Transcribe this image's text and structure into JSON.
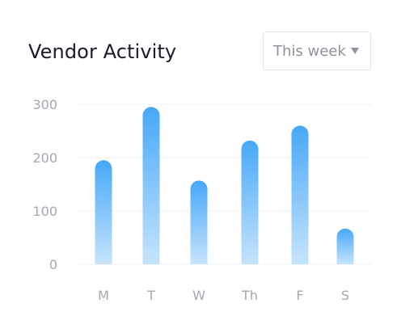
{
  "header": {
    "title": "Vendor Activity",
    "period_selector": {
      "selected": "This week",
      "icon": "chevron-down-icon"
    }
  },
  "colors": {
    "bar_top": "#46a8f8",
    "bar_bottom": "#c6e4fc",
    "grid": "#eef0f3",
    "tick_text": "#a4a8ae",
    "title_text": "#1b1b2a"
  },
  "chart_data": {
    "type": "bar",
    "title": "",
    "xlabel": "",
    "ylabel": "",
    "categories": [
      "M",
      "T",
      "W",
      "Th",
      "F",
      "S"
    ],
    "values": [
      195,
      295,
      157,
      232,
      260,
      67
    ],
    "ylim": [
      0,
      300
    ],
    "yticks": [
      0,
      100,
      200,
      300
    ],
    "grid": true,
    "legend": "none"
  }
}
